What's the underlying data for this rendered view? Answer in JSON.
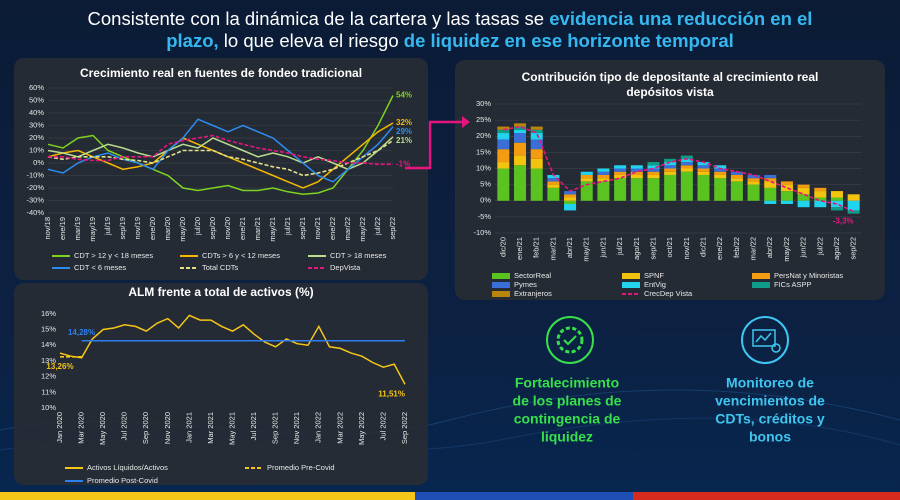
{
  "header": {
    "line1": [
      {
        "text": "Consistente con la dinámica de la cartera y las tasas se ",
        "highlight": false
      },
      {
        "text": "evidencia una reducción en el",
        "highlight": true
      }
    ],
    "line2": [
      {
        "text": "plazo,",
        "highlight": true
      },
      {
        "text": " lo que eleva el riesgo ",
        "highlight": false
      },
      {
        "text": "de liquidez en ese horizonte temporal",
        "highlight": true
      }
    ]
  },
  "callouts": [
    {
      "lines": [
        "Fortalecimiento",
        "de los planes de",
        "contingencia de",
        "liquidez"
      ],
      "color": "#35e04a"
    },
    {
      "lines": [
        "Monitoreo de",
        "vencimientos de",
        "CDTs, créditos y",
        "bonos"
      ],
      "color": "#3ec6f0"
    }
  ],
  "chart_data": [
    {
      "type": "line",
      "title": "Crecimiento real en fuentes de fondeo tradicional",
      "grid": true,
      "categories": [
        "nov/18",
        "ene/19",
        "mar/19",
        "may/19",
        "jul/19",
        "sep/19",
        "nov/19",
        "ene/20",
        "mar/20",
        "may/20",
        "jul/20",
        "sep/20",
        "nov/20",
        "ene/21",
        "mar/21",
        "may/21",
        "jul/21",
        "sep/21",
        "nov/21",
        "ene/22",
        "mar/22",
        "may/22",
        "jul/22",
        "sep/22"
      ],
      "ylim": [
        -40,
        60
      ],
      "yticks": [
        {
          "value": -40,
          "label": "-40%"
        },
        {
          "value": -30,
          "label": "-30%"
        },
        {
          "value": -20,
          "label": "-20%"
        },
        {
          "value": -10,
          "label": "-10%"
        },
        {
          "value": 0,
          "label": "0%"
        },
        {
          "value": 10,
          "label": "10%"
        },
        {
          "value": 20,
          "label": "20%"
        },
        {
          "value": 30,
          "label": "30%"
        },
        {
          "value": 40,
          "label": "40%"
        },
        {
          "value": 50,
          "label": "50%"
        },
        {
          "value": 60,
          "label": "60%"
        }
      ],
      "series": [
        {
          "name": "CDT > 12 y < 18 meses",
          "color": "#7ed321",
          "dashed": false,
          "values": [
            15,
            12,
            20,
            22,
            10,
            5,
            0,
            -5,
            -10,
            -20,
            -22,
            -20,
            -18,
            -22,
            -22,
            -20,
            -23,
            -25,
            -24,
            -20,
            -5,
            10,
            30,
            54
          ],
          "value_labels": [
            null,
            null,
            null,
            null,
            null,
            null,
            null,
            null,
            null,
            null,
            null,
            null,
            null,
            null,
            null,
            null,
            null,
            null,
            null,
            null,
            null,
            null,
            null,
            "54%"
          ]
        },
        {
          "name": "CDTs > 6 y < 12 meses",
          "color": "#f5b800",
          "dashed": false,
          "values": [
            5,
            8,
            10,
            5,
            0,
            -5,
            -3,
            0,
            10,
            20,
            15,
            10,
            5,
            0,
            -5,
            -10,
            -15,
            -20,
            -15,
            -5,
            5,
            15,
            25,
            32
          ],
          "value_labels": [
            null,
            null,
            null,
            null,
            null,
            null,
            null,
            null,
            null,
            null,
            null,
            null,
            null,
            null,
            null,
            null,
            null,
            null,
            null,
            null,
            null,
            null,
            null,
            "32%"
          ]
        },
        {
          "name": "CDT > 18 meses",
          "color": "#b9dd8f",
          "dashed": false,
          "values": [
            10,
            8,
            5,
            10,
            15,
            12,
            8,
            5,
            10,
            15,
            12,
            20,
            15,
            10,
            5,
            8,
            5,
            0,
            5,
            0,
            -5,
            0,
            10,
            21
          ],
          "value_labels": [
            null,
            null,
            null,
            null,
            null,
            null,
            null,
            null,
            null,
            null,
            null,
            null,
            null,
            null,
            null,
            null,
            null,
            null,
            null,
            null,
            null,
            null,
            null,
            "21%"
          ]
        },
        {
          "name": "CDT < 6 meses",
          "color": "#2d8cf0",
          "dashed": false,
          "values": [
            -5,
            -8,
            0,
            5,
            8,
            3,
            0,
            -5,
            10,
            20,
            35,
            30,
            25,
            30,
            25,
            20,
            10,
            0,
            -10,
            -15,
            -5,
            5,
            15,
            29
          ],
          "value_labels": [
            null,
            null,
            null,
            null,
            null,
            null,
            null,
            null,
            null,
            null,
            null,
            null,
            null,
            null,
            null,
            null,
            null,
            null,
            null,
            null,
            null,
            null,
            null,
            "29%"
          ]
        },
        {
          "name": "Total CDTs",
          "color": "#e3e08a",
          "dashed": true,
          "values": [
            5,
            3,
            5,
            5,
            5,
            3,
            2,
            0,
            5,
            10,
            10,
            10,
            5,
            3,
            0,
            -3,
            -5,
            -10,
            -8,
            -5,
            0,
            5,
            10,
            18
          ]
        },
        {
          "name": "DepVista",
          "color": "#e6157e",
          "dashed": true,
          "values": [
            5,
            5,
            3,
            2,
            2,
            5,
            5,
            5,
            15,
            18,
            20,
            22,
            18,
            15,
            12,
            10,
            8,
            5,
            3,
            2,
            0,
            0,
            -1,
            -1
          ],
          "value_labels": [
            null,
            null,
            null,
            null,
            null,
            null,
            null,
            null,
            null,
            null,
            null,
            null,
            null,
            null,
            null,
            null,
            null,
            null,
            null,
            null,
            null,
            null,
            null,
            "-1%"
          ]
        }
      ]
    },
    {
      "type": "bar",
      "title": [
        "Contribución  tipo de depositante al crecimiento real",
        "depósitos vista"
      ],
      "grid": true,
      "categories": [
        "dic/20",
        "ene/21",
        "feb/21",
        "mar/21",
        "abr/21",
        "may/21",
        "jun/21",
        "jul/21",
        "ago/21",
        "sep/21",
        "oct/21",
        "nov/21",
        "dic/21",
        "ene/22",
        "feb/22",
        "mar/22",
        "abr/22",
        "may/22",
        "jun/22",
        "jul/22",
        "ago/22",
        "sep/22"
      ],
      "ylim": [
        -10,
        30
      ],
      "yticks": [
        {
          "value": -10,
          "label": "-10%"
        },
        {
          "value": -5,
          "label": "-5%"
        },
        {
          "value": 0,
          "label": "0%"
        },
        {
          "value": 5,
          "label": "5%"
        },
        {
          "value": 10,
          "label": "10%"
        },
        {
          "value": 15,
          "label": "15%"
        },
        {
          "value": 20,
          "label": "20%"
        },
        {
          "value": 25,
          "label": "25%"
        },
        {
          "value": 30,
          "label": "30%"
        }
      ],
      "series": [
        {
          "name": "SectorReal",
          "color": "#5ac31f",
          "values": [
            10,
            11,
            10,
            4,
            -1,
            6,
            6,
            7,
            7,
            7,
            8,
            9,
            8,
            7,
            6,
            5,
            4,
            3,
            2,
            1,
            1,
            0
          ]
        },
        {
          "name": "SPNF",
          "color": "#f2c40f",
          "values": [
            2,
            3,
            3,
            1,
            1,
            1,
            1,
            1,
            1,
            1,
            1,
            1,
            1,
            1,
            1,
            1,
            2,
            2,
            2,
            2,
            2,
            2
          ]
        },
        {
          "name": "PersNat y Minoristas",
          "color": "#f39c12",
          "values": [
            4,
            4,
            3,
            1,
            1,
            1,
            1,
            1,
            1,
            1,
            1,
            1,
            1,
            1,
            1,
            1,
            1,
            1,
            1,
            1,
            0,
            0
          ]
        },
        {
          "name": "Pymes",
          "color": "#3a6fd8",
          "values": [
            3,
            3,
            3,
            1,
            1,
            0,
            1,
            1,
            1,
            1,
            1,
            1,
            1,
            1,
            1,
            1,
            1,
            0,
            0,
            0,
            0,
            0
          ]
        },
        {
          "name": "EntVig",
          "color": "#22d3ee",
          "values": [
            2,
            1,
            2,
            1,
            -2,
            1,
            1,
            1,
            1,
            1,
            1,
            1,
            1,
            1,
            0,
            0,
            -1,
            -1,
            -2,
            -2,
            -2,
            -3
          ]
        },
        {
          "name": "FICs ASPP",
          "color": "#0f9d8a",
          "values": [
            1,
            1,
            1,
            0,
            0,
            0,
            0,
            0,
            0,
            1,
            1,
            1,
            0,
            0,
            0,
            0,
            0,
            0,
            0,
            0,
            -1,
            -1
          ]
        },
        {
          "name": "Extranjeros",
          "color": "#b8860b",
          "values": [
            1,
            1,
            1,
            0,
            0,
            0,
            0,
            0,
            0,
            0,
            0,
            0,
            0,
            0,
            0,
            0,
            0,
            0,
            0,
            0,
            0,
            0
          ]
        },
        {
          "name": "CrecDep Vista",
          "color": "#e6157e",
          "type": "line",
          "dashed": true,
          "values": [
            22,
            23,
            21,
            8,
            3,
            5,
            6,
            7,
            9,
            10,
            12,
            13,
            12,
            10,
            9,
            8,
            6,
            4,
            2,
            0,
            -1,
            -3.3
          ],
          "value_labels": [
            null,
            null,
            null,
            null,
            null,
            null,
            null,
            null,
            null,
            null,
            null,
            null,
            null,
            null,
            null,
            null,
            null,
            null,
            null,
            null,
            null,
            "-3,3%"
          ]
        }
      ]
    },
    {
      "type": "line",
      "title": "ALM frente a total de activos (%)",
      "grid": false,
      "categories": [
        "Jan 2020",
        null,
        "Mar 2020",
        null,
        "May 2020",
        null,
        "Jul 2020",
        null,
        "Sep 2020",
        null,
        "Nov 2020",
        null,
        "Jan 2021",
        null,
        "Mar 2021",
        null,
        "May 2021",
        null,
        "Jul 2021",
        null,
        "Sep 2021",
        null,
        "Nov 2021",
        null,
        "Jan 2022",
        null,
        "Mar 2022",
        null,
        "May 2022",
        null,
        "Jul 2022",
        null,
        "Sep 2022"
      ],
      "ylim": [
        10,
        16.5
      ],
      "yticks": [
        {
          "value": 10,
          "label": "10%"
        },
        {
          "value": 11,
          "label": "11%"
        },
        {
          "value": 12,
          "label": "12%"
        },
        {
          "value": 13,
          "label": "13%"
        },
        {
          "value": 14,
          "label": "14%"
        },
        {
          "value": 15,
          "label": "15%"
        },
        {
          "value": 16,
          "label": "16%"
        }
      ],
      "series": [
        {
          "name": "Activos Líquidos/Activos",
          "color": "#f5c518",
          "dashed": false,
          "values": [
            13.5,
            13.3,
            13.2,
            14.4,
            15.0,
            15.1,
            15.3,
            15.2,
            14.9,
            15.4,
            15.7,
            15.1,
            15.9,
            15.6,
            15.6,
            15.2,
            14.9,
            15.3,
            14.7,
            14.2,
            13.9,
            14.4,
            14.1,
            14.0,
            15.2,
            13.9,
            13.8,
            13.5,
            13.3,
            12.9,
            12.6,
            12.8,
            11.51
          ],
          "value_labels": [
            null,
            null,
            null,
            null,
            null,
            null,
            null,
            null,
            null,
            null,
            null,
            null,
            null,
            null,
            null,
            null,
            null,
            null,
            null,
            null,
            null,
            null,
            null,
            null,
            null,
            null,
            null,
            null,
            null,
            null,
            null,
            null,
            "11,51%"
          ]
        },
        {
          "name": "Promedio Pre-Covid",
          "color": "#f5c518",
          "dashed": true,
          "values": [
            13.26,
            13.26,
            13.26,
            null,
            null,
            null,
            null,
            null,
            null,
            null,
            null,
            null,
            null,
            null,
            null,
            null,
            null,
            null,
            null,
            null,
            null,
            null,
            null,
            null,
            null,
            null,
            null,
            null,
            null,
            null,
            null,
            null,
            null
          ],
          "value_labels": [
            "13,26%",
            null,
            null,
            null,
            null,
            null,
            null,
            null,
            null,
            null,
            null,
            null,
            null,
            null,
            null,
            null,
            null,
            null,
            null,
            null,
            null,
            null,
            null,
            null,
            null,
            null,
            null,
            null,
            null,
            null,
            null,
            null,
            null
          ]
        },
        {
          "name": "Promedio Post-Covid",
          "color": "#2d7ff0",
          "dashed": false,
          "values": [
            null,
            null,
            14.28,
            14.28,
            14.28,
            14.28,
            14.28,
            14.28,
            14.28,
            14.28,
            14.28,
            14.28,
            14.28,
            14.28,
            14.28,
            14.28,
            14.28,
            14.28,
            14.28,
            14.28,
            14.28,
            14.28,
            14.28,
            14.28,
            14.28,
            14.28,
            14.28,
            14.28,
            14.28,
            14.28,
            14.28,
            14.28,
            14.28
          ],
          "value_labels": [
            null,
            null,
            "14,28%",
            null,
            null,
            null,
            null,
            null,
            null,
            null,
            null,
            null,
            null,
            null,
            null,
            null,
            null,
            null,
            null,
            null,
            null,
            null,
            null,
            null,
            null,
            null,
            null,
            null,
            null,
            null,
            null,
            null,
            null
          ]
        }
      ]
    }
  ]
}
